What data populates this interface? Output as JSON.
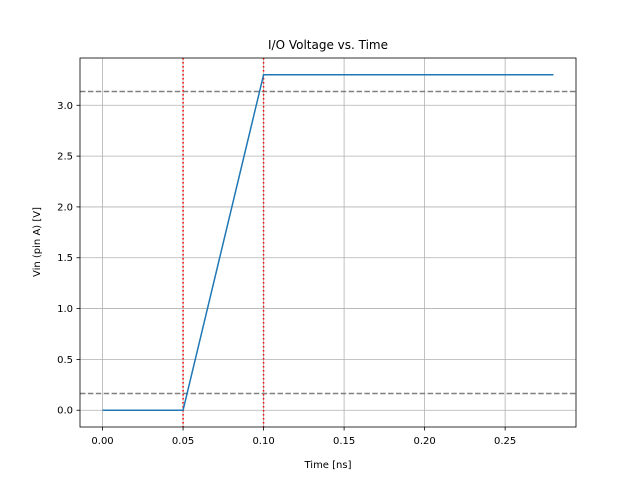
{
  "chart_data": {
    "type": "line",
    "title": "I/O Voltage vs. Time",
    "xlabel": "Time [ns]",
    "ylabel": "Vin (pin A) [V]",
    "xlim": [
      -0.014,
      0.294
    ],
    "ylim": [
      -0.165,
      3.465
    ],
    "x_ticks": [
      0.0,
      0.05,
      0.1,
      0.15,
      0.2,
      0.25
    ],
    "x_tick_labels": [
      "0.00",
      "0.05",
      "0.10",
      "0.15",
      "0.20",
      "0.25"
    ],
    "y_ticks": [
      0.0,
      0.5,
      1.0,
      1.5,
      2.0,
      2.5,
      3.0
    ],
    "y_tick_labels": [
      "0.0",
      "0.5",
      "1.0",
      "1.5",
      "2.0",
      "2.5",
      "3.0"
    ],
    "grid": true,
    "series": [
      {
        "x": [
          0.0,
          0.05,
          0.1,
          0.28
        ],
        "y": [
          0.0,
          0.0,
          3.3,
          3.3
        ],
        "color": "#1f77b4"
      }
    ],
    "hlines": [
      {
        "y": 3.135,
        "color": "#808080",
        "style": "dashed"
      },
      {
        "y": 0.165,
        "color": "#808080",
        "style": "dashed"
      }
    ],
    "vlines": [
      {
        "x": 0.05,
        "color": "#ff0000",
        "style": "dotted"
      },
      {
        "x": 0.1,
        "color": "#ff0000",
        "style": "dotted"
      }
    ]
  }
}
